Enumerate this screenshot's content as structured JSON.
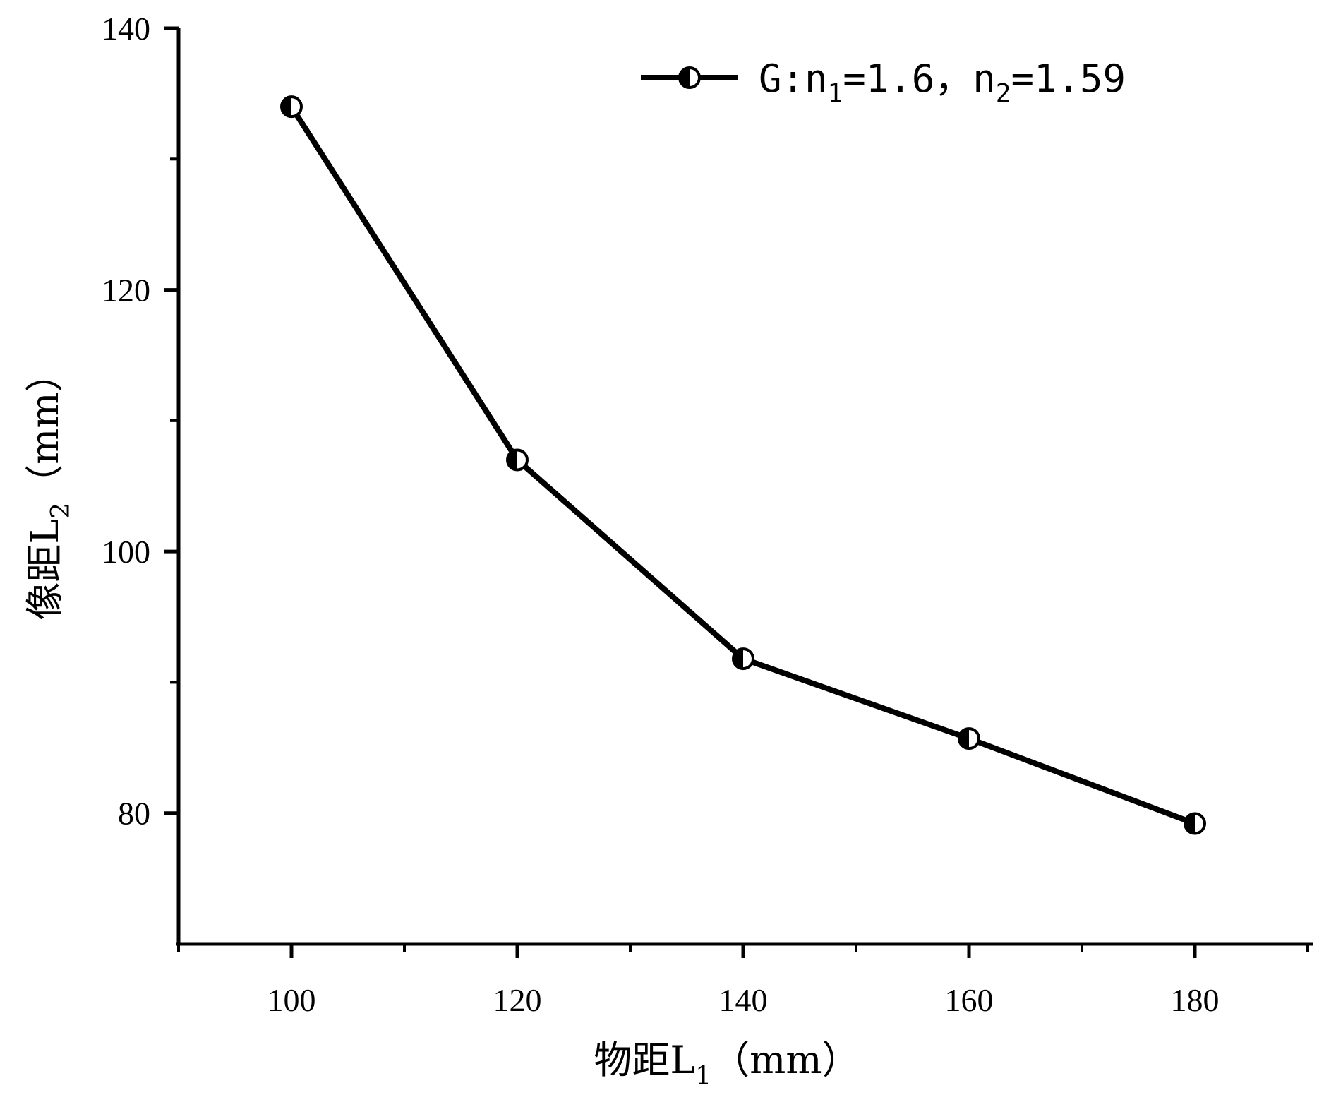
{
  "chart_data": {
    "type": "line",
    "xlabel": "物距L",
    "xlabel_sub": "1",
    "xlabel_unit": "（mm）",
    "ylabel": "像距L",
    "ylabel_sub": "2",
    "ylabel_unit": "（mm）",
    "xlim": [
      90,
      190
    ],
    "ylim": [
      70,
      140
    ],
    "x_ticks": [
      100,
      120,
      140,
      160,
      180
    ],
    "y_ticks": [
      80,
      100,
      120,
      140
    ],
    "x_minor_ticks": [
      90,
      110,
      130,
      150,
      170,
      190
    ],
    "y_minor_ticks": [
      90,
      110,
      130
    ],
    "grid": false,
    "legend_position": "top-right",
    "series": [
      {
        "name": "G:n1=1.6，n2=1.59",
        "name_parts": [
          "G:n",
          "1",
          "=1.6，n",
          "2",
          "=1.59"
        ],
        "marker": "half-filled circle",
        "color": "#000000",
        "x": [
          100,
          120,
          140,
          160,
          180
        ],
        "y": [
          134,
          107,
          91.8,
          85.7,
          79.2
        ]
      }
    ]
  }
}
